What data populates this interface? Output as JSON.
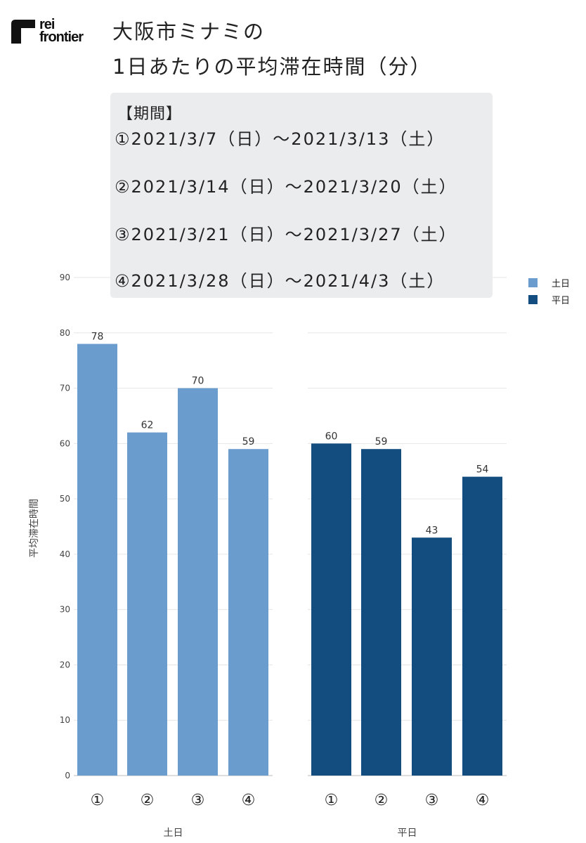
{
  "logo": {
    "line1": "rei",
    "line2": "frontier"
  },
  "title": {
    "line1": "大阪市ミナミの",
    "line2": "1日あたりの平均滞在時間（分）"
  },
  "periods": {
    "heading": "【期間】",
    "lines": [
      "①2021/3/7（日）～2021/3/13（土）",
      "②2021/3/14（日）～2021/3/20（土）",
      "③2021/3/21（日）～2021/3/27（土）",
      "④2021/3/28（日）～2021/4/3（土）"
    ]
  },
  "chart_data": {
    "type": "bar",
    "ylabel": "平均滞在時間",
    "ylim": [
      0,
      90
    ],
    "yticks": [
      0,
      10,
      20,
      30,
      40,
      50,
      60,
      70,
      80,
      90
    ],
    "grid": true,
    "legend_position": "top-right",
    "categories": [
      "①",
      "②",
      "③",
      "④"
    ],
    "series": [
      {
        "name": "土日",
        "color": "#6a9ccd",
        "values": [
          78,
          62,
          70,
          59
        ],
        "labels": [
          "78",
          "62",
          "70",
          "59"
        ]
      },
      {
        "name": "平日",
        "color": "#134d80",
        "values": [
          60,
          59,
          43,
          54
        ],
        "labels": [
          "60",
          "59",
          "43",
          "54"
        ]
      }
    ]
  }
}
